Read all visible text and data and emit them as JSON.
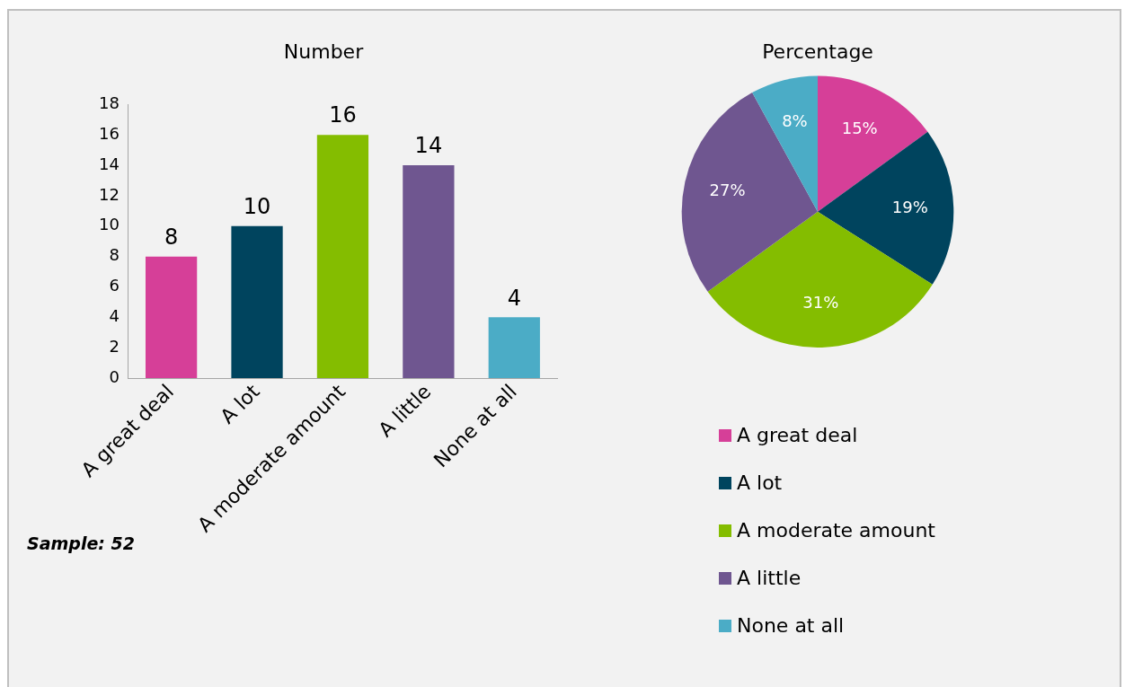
{
  "chart_data": [
    {
      "type": "bar",
      "title": "Number",
      "categories": [
        "A great deal",
        "A lot",
        "A moderate amount",
        "A little",
        "None at all"
      ],
      "values": [
        8,
        10,
        16,
        14,
        4
      ],
      "colors": [
        "#d63f98",
        "#00445e",
        "#84bd00",
        "#6f5690",
        "#4bacc6"
      ],
      "ylim": [
        0,
        18
      ],
      "yticks": [
        0,
        2,
        4,
        6,
        8,
        10,
        12,
        14,
        16,
        18
      ],
      "grid": false,
      "legend": false,
      "data_labels": true,
      "annotations": [
        "Sample: 52"
      ]
    },
    {
      "type": "pie",
      "title": "Percentage",
      "categories": [
        "A great deal",
        "A lot",
        "A moderate amount",
        "A little",
        "None at all"
      ],
      "values": [
        15,
        19,
        31,
        27,
        8
      ],
      "colors": [
        "#d63f98",
        "#00445e",
        "#84bd00",
        "#6f5690",
        "#4bacc6"
      ],
      "legend": "bottom",
      "value_labels": [
        "15%",
        "19%",
        "31%",
        "27%",
        "8%"
      ]
    }
  ]
}
